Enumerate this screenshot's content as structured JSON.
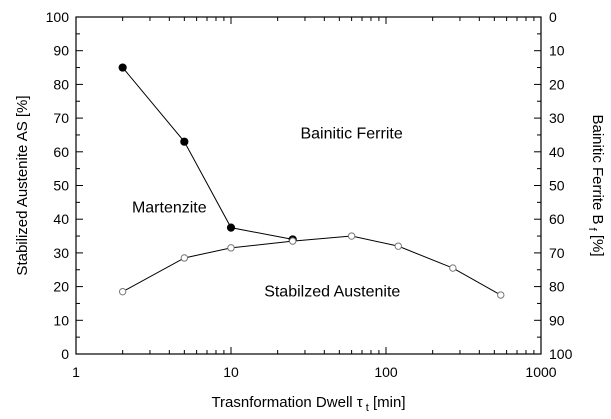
{
  "chart_data": {
    "type": "line",
    "x_scale": "log",
    "xlim": [
      1,
      1000
    ],
    "ylim_left": [
      0,
      100
    ],
    "ylim_right": [
      0,
      100
    ],
    "right_axis_inverted": true,
    "xticks": [
      "1",
      "10",
      "100",
      "1000"
    ],
    "yticks_left": [
      "0",
      "10",
      "20",
      "30",
      "40",
      "50",
      "60",
      "70",
      "80",
      "90",
      "100"
    ],
    "yticks_right": [
      "0",
      "10",
      "20",
      "30",
      "40",
      "50",
      "60",
      "70",
      "80",
      "90",
      "100"
    ],
    "xlabel": "Trasnformation  Dwell",
    "xlabel_symbol": "τ",
    "xlabel_subscript": "t",
    "xlabel_unit": "[min]",
    "ylabel_left": "Stabilized Austenite  AS  [%]",
    "ylabel_right": "Bainitic Ferrite  B",
    "ylabel_right_subscript": "f",
    "ylabel_right_unit": "[%]",
    "annotations": [
      {
        "text": "Bainitic  Ferrite",
        "x": 60,
        "y": 64
      },
      {
        "text": "Martenzite",
        "x": 4.0,
        "y": 42
      },
      {
        "text": "Stabilzed  Austenite",
        "x": 45,
        "y": 17
      }
    ],
    "series": [
      {
        "marker": "filled-circle",
        "color": "#000000",
        "x": [
          2,
          5,
          10,
          25
        ],
        "y": [
          85,
          63,
          37.5,
          34
        ]
      },
      {
        "marker": "open-circle",
        "color": "#000000",
        "x": [
          2,
          5,
          10,
          25,
          60,
          120,
          270,
          550
        ],
        "y": [
          18.5,
          28.5,
          31.5,
          33.5,
          35,
          32,
          25.5,
          17.5
        ]
      }
    ],
    "grid": false
  }
}
